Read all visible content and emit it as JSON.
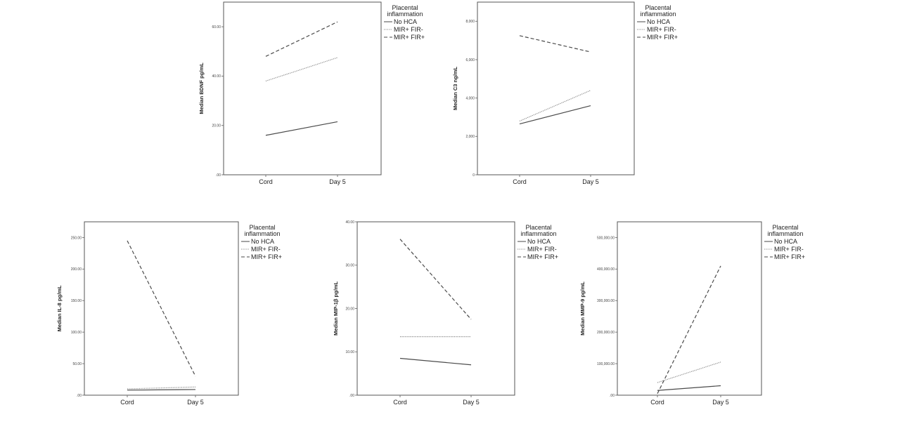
{
  "colors": {
    "series": [
      "#4a4a4a",
      "#8a8a8a",
      "#4a4a4a"
    ],
    "frame": "#555555"
  },
  "chart_data": [
    {
      "type": "line",
      "categories": [
        "Cord",
        "Day 5"
      ],
      "ylabel": "Median BDNF pg/mL",
      "ylim": [
        0,
        70
      ],
      "ticks": [
        0,
        20,
        40,
        60
      ],
      "tick_labels": [
        ".00",
        "20.00",
        "40.00",
        "60.00"
      ],
      "legend": {
        "title": [
          "Placental",
          "inflammation"
        ],
        "position": "right"
      },
      "series": [
        {
          "name": "No HCA",
          "style": "solid",
          "values": [
            16,
            21.5
          ]
        },
        {
          "name": "MIR+ FIR-",
          "style": "dotted",
          "values": [
            38,
            47.5
          ]
        },
        {
          "name": "MIR+ FIR+",
          "style": "dashed",
          "values": [
            48,
            62
          ]
        }
      ]
    },
    {
      "type": "line",
      "categories": [
        "Cord",
        "Day 5"
      ],
      "ylabel": "Median C3 ng/mL",
      "ylim": [
        0,
        9000
      ],
      "ticks": [
        0,
        2000,
        4000,
        6000,
        8000
      ],
      "tick_labels": [
        "0",
        "2,000",
        "4,000",
        "6,000",
        "8,000"
      ],
      "legend": {
        "title": [
          "Placental",
          "inflammation"
        ],
        "position": "right"
      },
      "series": [
        {
          "name": "No HCA",
          "style": "solid",
          "values": [
            2650,
            3600
          ]
        },
        {
          "name": "MIR+ FIR-",
          "style": "dotted",
          "values": [
            2800,
            4400
          ]
        },
        {
          "name": "MIR+ FIR+",
          "style": "dashed",
          "values": [
            7250,
            6400
          ]
        }
      ]
    },
    {
      "type": "line",
      "categories": [
        "Cord",
        "Day 5"
      ],
      "ylabel": "Median IL-8 pg/mL",
      "ylim": [
        0,
        275
      ],
      "ticks": [
        0,
        50,
        100,
        150,
        200,
        250
      ],
      "tick_labels": [
        ".00",
        "50.00",
        "100.00",
        "150.00",
        "200.00",
        "250.00"
      ],
      "legend": {
        "title": [
          "Placental",
          "inflammation"
        ],
        "position": "right"
      },
      "series": [
        {
          "name": "No HCA",
          "style": "solid",
          "values": [
            8,
            9
          ]
        },
        {
          "name": "MIR+ FIR-",
          "style": "dotted",
          "values": [
            10,
            13
          ]
        },
        {
          "name": "MIR+ FIR+",
          "style": "dashed",
          "values": [
            245,
            30
          ]
        }
      ]
    },
    {
      "type": "line",
      "categories": [
        "Cord",
        "Day 5"
      ],
      "ylabel": "Median MIP-1β pg/mL",
      "ylim": [
        0,
        40
      ],
      "ticks": [
        0,
        10,
        20,
        30,
        40
      ],
      "tick_labels": [
        ".00",
        "10.00",
        "20.00",
        "30.00",
        "40.00"
      ],
      "legend": {
        "title": [
          "Placental",
          "inflammation"
        ],
        "position": "right"
      },
      "series": [
        {
          "name": "No HCA",
          "style": "solid",
          "values": [
            8.5,
            7
          ]
        },
        {
          "name": "MIR+ FIR-",
          "style": "dotted",
          "values": [
            13.5,
            13.5
          ]
        },
        {
          "name": "MIR+ FIR+",
          "style": "dashed",
          "values": [
            36,
            17.5
          ]
        }
      ]
    },
    {
      "type": "line",
      "categories": [
        "Cord",
        "Day 5"
      ],
      "ylabel": "Median MMP-9 pg/mL",
      "ylim": [
        0,
        550000
      ],
      "ticks": [
        0,
        100000,
        200000,
        300000,
        400000,
        500000
      ],
      "tick_labels": [
        ".00",
        "100,000.00",
        "200,000.00",
        "300,000.00",
        "400,000.00",
        "500,000.00"
      ],
      "legend": {
        "title": [
          "Placental",
          "inflammation"
        ],
        "position": "right"
      },
      "series": [
        {
          "name": "No HCA",
          "style": "solid",
          "values": [
            15000,
            30000
          ]
        },
        {
          "name": "MIR+ FIR-",
          "style": "dotted",
          "values": [
            40000,
            105000
          ]
        },
        {
          "name": "MIR+ FIR+",
          "style": "dashed",
          "values": [
            5000,
            410000
          ]
        }
      ]
    }
  ]
}
